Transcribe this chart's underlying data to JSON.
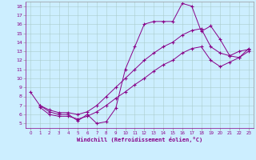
{
  "xlabel": "Windchill (Refroidissement éolien,°C)",
  "bg_color": "#cceeff",
  "line_color": "#880088",
  "xlim": [
    -0.5,
    23.5
  ],
  "ylim": [
    4.5,
    18.5
  ],
  "xticks": [
    0,
    1,
    2,
    3,
    4,
    5,
    6,
    7,
    8,
    9,
    10,
    11,
    12,
    13,
    14,
    15,
    16,
    17,
    18,
    19,
    20,
    21,
    22,
    23
  ],
  "yticks": [
    5,
    6,
    7,
    8,
    9,
    10,
    11,
    12,
    13,
    14,
    15,
    16,
    17,
    18
  ],
  "series": [
    {
      "x": [
        0,
        1,
        2,
        3,
        4,
        5,
        6,
        7,
        8,
        9,
        10,
        11,
        12,
        13,
        14,
        15,
        16,
        17,
        18,
        19,
        20,
        21,
        22,
        23
      ],
      "y": [
        8.5,
        7.0,
        6.3,
        6.0,
        6.0,
        5.3,
        6.0,
        5.0,
        5.2,
        6.7,
        11.0,
        13.5,
        16.0,
        16.3,
        16.3,
        16.3,
        18.3,
        18.0,
        15.2,
        15.8,
        14.3,
        12.5,
        12.3,
        13.3
      ]
    },
    {
      "x": [
        1,
        2,
        3,
        4,
        5,
        6,
        7,
        8,
        9,
        10,
        11,
        12,
        13,
        14,
        15,
        16,
        17,
        18,
        19,
        20,
        21,
        22,
        23
      ],
      "y": [
        7.0,
        6.5,
        6.2,
        6.2,
        6.0,
        6.3,
        7.0,
        8.0,
        9.0,
        10.0,
        11.0,
        12.0,
        12.8,
        13.5,
        14.0,
        14.8,
        15.3,
        15.5,
        13.5,
        12.8,
        12.5,
        13.0,
        13.2
      ]
    },
    {
      "x": [
        1,
        2,
        3,
        4,
        5,
        6,
        7,
        8,
        9,
        10,
        11,
        12,
        13,
        14,
        15,
        16,
        17,
        18,
        19,
        20,
        21,
        22,
        23
      ],
      "y": [
        6.8,
        6.0,
        5.8,
        5.8,
        5.5,
        5.8,
        6.3,
        7.0,
        7.8,
        8.5,
        9.3,
        10.0,
        10.8,
        11.5,
        12.0,
        12.8,
        13.3,
        13.5,
        12.0,
        11.3,
        11.8,
        12.3,
        13.0
      ]
    }
  ]
}
